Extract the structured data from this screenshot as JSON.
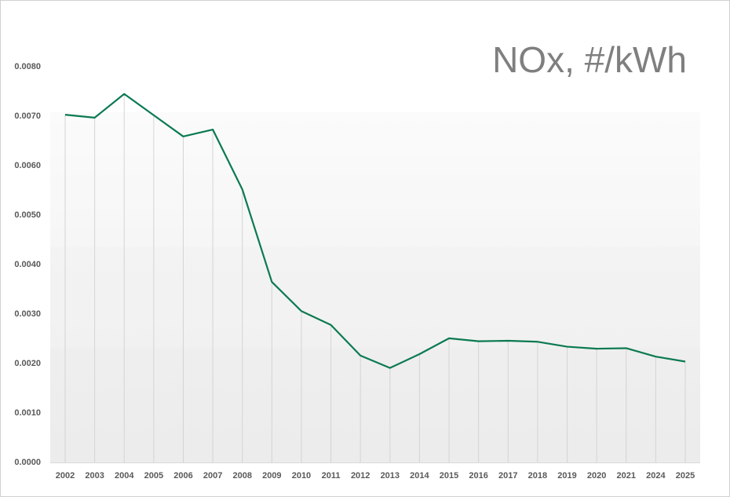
{
  "chart_data": {
    "type": "line",
    "title": "NOx, #/kWh",
    "categories": [
      "2002",
      "2003",
      "2004",
      "2005",
      "2006",
      "2007",
      "2008",
      "2009",
      "2010",
      "2011",
      "2012",
      "2013",
      "2014",
      "2015",
      "2016",
      "2017",
      "2018",
      "2019",
      "2020",
      "2021",
      "2024",
      "2025"
    ],
    "series": [
      {
        "name": "NOx",
        "color": "#0b7a50",
        "values": [
          0.00703,
          0.00697,
          0.00745,
          0.00702,
          0.00659,
          0.00673,
          0.00552,
          0.00365,
          0.00306,
          0.00278,
          0.00216,
          0.00191,
          0.00219,
          0.00251,
          0.00245,
          0.00246,
          0.00244,
          0.00234,
          0.0023,
          0.00231,
          0.00214,
          0.00204
        ]
      }
    ],
    "ylim": [
      0,
      0.008
    ],
    "yticks": [
      {
        "value": 0,
        "label": "0.0000"
      },
      {
        "value": 0.001,
        "label": "0.0010"
      },
      {
        "value": 0.002,
        "label": "0.0020"
      },
      {
        "value": 0.003,
        "label": "0.0030"
      },
      {
        "value": 0.004,
        "label": "0.0040"
      },
      {
        "value": 0.005,
        "label": "0.0050"
      },
      {
        "value": 0.006,
        "label": "0.0060"
      },
      {
        "value": 0.007,
        "label": "0.0070"
      },
      {
        "value": 0.008,
        "label": "0.0080"
      }
    ],
    "drop_lines": true
  }
}
